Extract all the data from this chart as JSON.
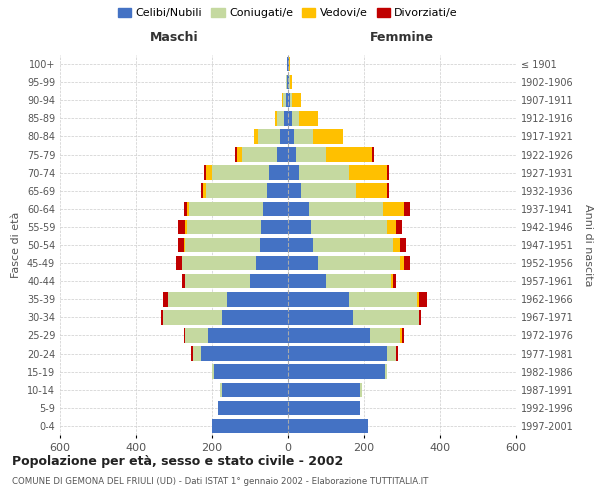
{
  "age_groups": [
    "0-4",
    "5-9",
    "10-14",
    "15-19",
    "20-24",
    "25-29",
    "30-34",
    "35-39",
    "40-44",
    "45-49",
    "50-54",
    "55-59",
    "60-64",
    "65-69",
    "70-74",
    "75-79",
    "80-84",
    "85-89",
    "90-94",
    "95-99",
    "100+"
  ],
  "birth_years": [
    "1997-2001",
    "1992-1996",
    "1987-1991",
    "1982-1986",
    "1977-1981",
    "1972-1976",
    "1967-1971",
    "1962-1966",
    "1957-1961",
    "1952-1956",
    "1947-1951",
    "1942-1946",
    "1937-1941",
    "1932-1936",
    "1927-1931",
    "1922-1926",
    "1917-1921",
    "1912-1916",
    "1907-1911",
    "1902-1906",
    "≤ 1901"
  ],
  "males": {
    "celibi": [
      200,
      185,
      175,
      195,
      230,
      210,
      175,
      160,
      100,
      85,
      75,
      70,
      65,
      55,
      50,
      30,
      20,
      10,
      5,
      3,
      2
    ],
    "coniugati": [
      0,
      0,
      5,
      5,
      20,
      60,
      155,
      155,
      170,
      195,
      195,
      195,
      195,
      160,
      150,
      90,
      60,
      20,
      8,
      2,
      0
    ],
    "vedovi": [
      0,
      0,
      0,
      0,
      0,
      0,
      0,
      0,
      0,
      0,
      5,
      5,
      5,
      10,
      15,
      15,
      10,
      5,
      2,
      0,
      0
    ],
    "divorziati": [
      0,
      0,
      0,
      0,
      5,
      5,
      5,
      15,
      10,
      15,
      15,
      20,
      10,
      5,
      5,
      5,
      0,
      0,
      0,
      0,
      0
    ]
  },
  "females": {
    "nubili": [
      210,
      190,
      190,
      255,
      260,
      215,
      170,
      160,
      100,
      80,
      65,
      60,
      55,
      35,
      30,
      20,
      15,
      10,
      5,
      3,
      2
    ],
    "coniugate": [
      0,
      0,
      5,
      5,
      25,
      80,
      175,
      180,
      170,
      215,
      210,
      200,
      195,
      145,
      130,
      80,
      50,
      20,
      5,
      2,
      0
    ],
    "vedove": [
      0,
      0,
      0,
      0,
      0,
      5,
      0,
      5,
      5,
      10,
      20,
      25,
      55,
      80,
      100,
      120,
      80,
      50,
      25,
      5,
      2
    ],
    "divorziate": [
      0,
      0,
      0,
      0,
      5,
      5,
      5,
      20,
      10,
      15,
      15,
      15,
      15,
      5,
      5,
      5,
      0,
      0,
      0,
      0,
      0
    ]
  },
  "colors": {
    "celibi": "#4472c4",
    "coniugati": "#c5d9a0",
    "vedovi": "#ffc000",
    "divorziati": "#c00000"
  },
  "title": "Popolazione per età, sesso e stato civile - 2002",
  "subtitle": "COMUNE DI GEMONA DEL FRIULI (UD) - Dati ISTAT 1° gennaio 2002 - Elaborazione TUTTITALIA.IT",
  "xlabel_left": "Maschi",
  "xlabel_right": "Femmine",
  "ylabel_left": "Fasce di età",
  "ylabel_right": "Anni di nascita",
  "xlim": 600,
  "legend_labels": [
    "Celibi/Nubili",
    "Coniugati/e",
    "Vedovi/e",
    "Divorziati/e"
  ],
  "bg_color": "#ffffff"
}
